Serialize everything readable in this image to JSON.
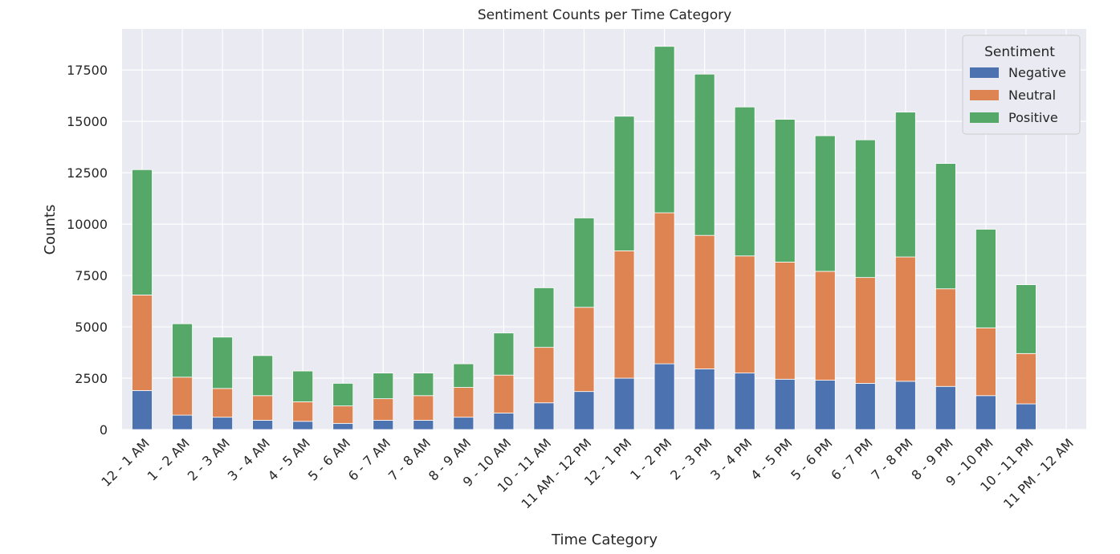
{
  "chart_data": {
    "type": "bar",
    "stacked": true,
    "title": "Sentiment Counts per Time Category",
    "xlabel": "Time Category",
    "ylabel": "Counts",
    "ylim": [
      0,
      19500
    ],
    "yticks": [
      0,
      2500,
      5000,
      7500,
      10000,
      12500,
      15000,
      17500
    ],
    "grid": true,
    "legend": {
      "title": "Sentiment",
      "placement": "top-right"
    },
    "categories": [
      "12 - 1 AM",
      "1 - 2 AM",
      "2 - 3 AM",
      "3 - 4 AM",
      "4 - 5 AM",
      "5 - 6 AM",
      "6 - 7 AM",
      "7 - 8 AM",
      "8 - 9 AM",
      "9 - 10 AM",
      "10 - 11 AM",
      "11 AM - 12 PM",
      "12 - 1 PM",
      "1 - 2 PM",
      "2 - 3 PM",
      "3 - 4 PM",
      "4 - 5 PM",
      "5 - 6 PM",
      "6 - 7 PM",
      "7 - 8 PM",
      "8 - 9 PM",
      "9 - 10 PM",
      "10 - 11 PM",
      "11 PM - 12 AM"
    ],
    "series": [
      {
        "name": "Negative",
        "color": "#4c72b0",
        "values": [
          1900,
          700,
          600,
          450,
          400,
          300,
          450,
          450,
          600,
          800,
          1300,
          1850,
          2500,
          3200,
          2950,
          2750,
          2450,
          2400,
          2250,
          2350,
          2100,
          1650,
          1250,
          0
        ]
      },
      {
        "name": "Neutral",
        "color": "#dd8452",
        "values": [
          4650,
          1850,
          1400,
          1200,
          950,
          850,
          1050,
          1200,
          1450,
          1850,
          2700,
          4100,
          6200,
          7350,
          6500,
          5700,
          5700,
          5300,
          5150,
          6050,
          4750,
          3300,
          2450,
          0
        ]
      },
      {
        "name": "Positive",
        "color": "#55a868",
        "values": [
          6100,
          2600,
          2500,
          1950,
          1500,
          1100,
          1250,
          1100,
          1150,
          2050,
          2900,
          4350,
          6550,
          8100,
          7850,
          7250,
          6950,
          6600,
          6700,
          7050,
          6100,
          4800,
          3350,
          0
        ]
      }
    ]
  }
}
